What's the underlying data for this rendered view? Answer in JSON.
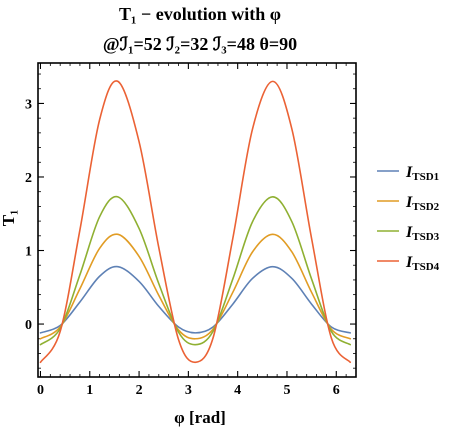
{
  "chart_data": {
    "type": "line",
    "title_line1": "T₁ − evolution with φ",
    "title_line2": "@ℐ₁=52 ℐ₂=32 ℐ₃=48 θ=90",
    "xlabel": "φ [rad]",
    "ylabel": "T₁",
    "xlim": [
      -0.05,
      6.4
    ],
    "ylim": [
      -0.72,
      3.55
    ],
    "xticks": [
      0,
      1,
      2,
      3,
      4,
      5,
      6
    ],
    "yticks": [
      0,
      1,
      2,
      3
    ],
    "grid": false,
    "legend_position": "right",
    "series": [
      {
        "name": "I_TSD1",
        "label_main": "I",
        "label_sub": "TSD1",
        "color": "#5e81b5",
        "x": [
          0,
          0.4,
          0.8,
          1.2,
          1.571,
          2.0,
          2.4,
          2.8,
          3.142,
          3.5,
          3.9,
          4.3,
          4.712,
          5.1,
          5.5,
          5.9,
          6.283
        ],
        "y": [
          -0.12,
          -0.02,
          0.3,
          0.65,
          0.78,
          0.58,
          0.24,
          -0.04,
          -0.12,
          -0.04,
          0.27,
          0.62,
          0.78,
          0.62,
          0.27,
          -0.04,
          -0.12
        ]
      },
      {
        "name": "I_TSD2",
        "label_main": "I",
        "label_sub": "TSD2",
        "color": "#e19c24",
        "x": [
          0,
          0.4,
          0.8,
          1.2,
          1.571,
          2.0,
          2.4,
          2.8,
          3.142,
          3.5,
          3.9,
          4.3,
          4.712,
          5.1,
          5.5,
          5.9,
          6.283
        ],
        "y": [
          -0.2,
          -0.04,
          0.48,
          1.03,
          1.22,
          0.92,
          0.39,
          -0.08,
          -0.2,
          -0.07,
          0.43,
          0.98,
          1.22,
          0.98,
          0.43,
          -0.07,
          -0.2
        ]
      },
      {
        "name": "I_TSD3",
        "label_main": "I",
        "label_sub": "TSD3",
        "color": "#8fb032",
        "x": [
          0,
          0.4,
          0.8,
          1.2,
          1.571,
          2.0,
          2.4,
          2.8,
          3.142,
          3.5,
          3.9,
          4.3,
          4.712,
          5.1,
          5.5,
          5.9,
          6.283
        ],
        "y": [
          -0.28,
          -0.06,
          0.67,
          1.46,
          1.73,
          1.3,
          0.55,
          -0.11,
          -0.28,
          -0.1,
          0.61,
          1.39,
          1.73,
          1.39,
          0.61,
          -0.1,
          -0.28
        ]
      },
      {
        "name": "I_TSD4",
        "label_main": "I",
        "label_sub": "TSD4",
        "color": "#eb6235",
        "x": [
          0,
          0.4,
          0.8,
          1.2,
          1.571,
          2.0,
          2.4,
          2.8,
          3.142,
          3.5,
          3.9,
          4.3,
          4.712,
          5.1,
          5.5,
          5.9,
          6.283
        ],
        "y": [
          -0.52,
          -0.1,
          1.28,
          2.78,
          3.3,
          2.48,
          1.04,
          -0.21,
          -0.52,
          -0.19,
          1.16,
          2.65,
          3.3,
          2.65,
          1.16,
          -0.19,
          -0.52
        ]
      }
    ]
  }
}
